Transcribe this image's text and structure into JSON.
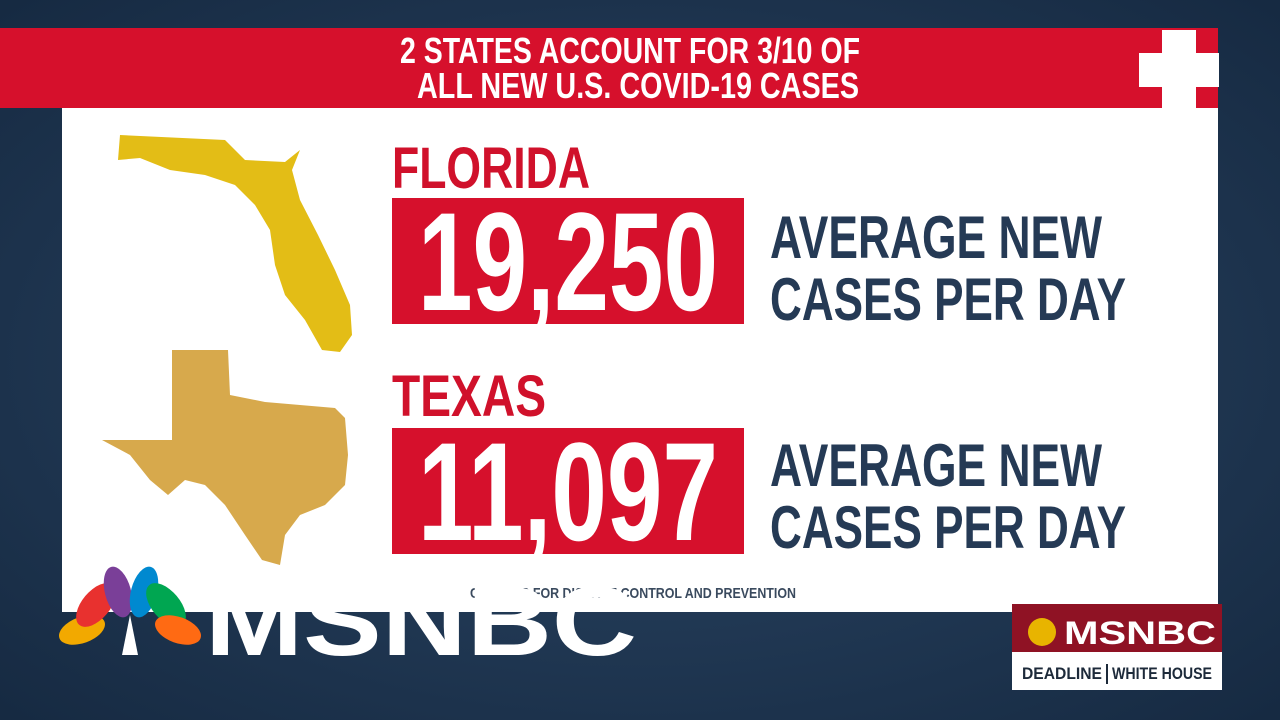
{
  "header": {
    "title_lines": [
      "2 STATES ACCOUNT FOR 3/10 OF",
      "ALL NEW U.S. COVID-19 CASES"
    ]
  },
  "states": [
    {
      "name": "FLORIDA",
      "number": "19,250",
      "label_lines": [
        "AVERAGE NEW",
        "CASES PER DAY"
      ]
    },
    {
      "name": "TEXAS",
      "number": "11,097",
      "label_lines": [
        "AVERAGE NEW",
        "CASES PER DAY"
      ]
    }
  ],
  "source": "CENTERS FOR DISEASE CONTROL AND PREVENTION",
  "logo": "MSNBC",
  "bug": {
    "network": "MSNBC",
    "show_left": "DEADLINE",
    "show_right": "WHITE HOUSE"
  }
}
